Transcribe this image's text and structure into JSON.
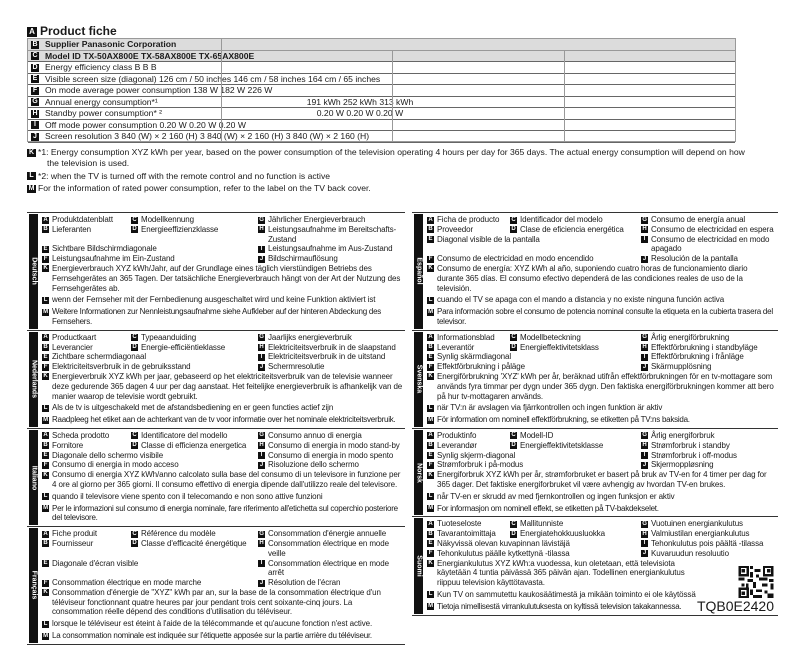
{
  "fiche": {
    "letter": "A",
    "title": "Product fiche",
    "rows": [
      {
        "letter": "B",
        "text": "Supplier Panasonic Corporation",
        "value": ""
      },
      {
        "letter": "C",
        "text": "Model ID TX-50AX800E TX-58AX800E TX-65AX800E",
        "value": ""
      },
      {
        "letter": "D",
        "text": "Energy efficiency class B B B",
        "value": ""
      },
      {
        "letter": "E",
        "text": "Visible screen size (diagonal) 126 cm / 50 inches 146 cm / 58 inches 164 cm / 65 inches",
        "value": ""
      },
      {
        "letter": "F",
        "text": "On mode average power consumption 138 W 182 W 226 W",
        "value": ""
      },
      {
        "letter": "G",
        "text": "Annual energy consumption*¹",
        "value": "191 kWh 252 kWh 313 kWh"
      },
      {
        "letter": "H",
        "text": "Standby power consumption* ²",
        "value": "0.20 W 0.20 W 0.20 W"
      },
      {
        "letter": "I",
        "text": "Off mode power consumption 0.20 W 0.20 W 0.20 W",
        "value": ""
      },
      {
        "letter": "J",
        "text": "Screen resolution 3 840 (W) × 2 160 (H) 3 840 (W) × 2 160 (H) 3 840 (W) × 2 160 (H)",
        "value": ""
      }
    ],
    "notes": [
      {
        "letter": "K",
        "text": "*1: Energy consumption XYZ kWh per year, based on the power consumption of the television operating 4 hours per day for 365 days. The actual energy consumption will depend on how",
        "text2": "the television is used."
      },
      {
        "letter": "L",
        "text": "*2: when the TV is turned off with the remote control and no function is active"
      },
      {
        "letter": "M",
        "text": "For the information of rated power consumption, refer to the label on the TV back cover."
      }
    ]
  },
  "languages": {
    "left": [
      {
        "name": "Deutsch",
        "A": "Produktdatenblatt",
        "B": "Lieferanten",
        "C": "Modellkennung",
        "D": "Energieeffizienzklasse",
        "E": "Sichtbare Bildschirmdiagonale",
        "F": "Leistungsaufnahme im Ein-Zustand",
        "G": "Jährlicher Energieverbrauch",
        "H": "Leistungsaufnahme im Bereitschafts-Zustand",
        "I": "Leistungsaufnahme im Aus-Zustand",
        "J": "Bildschirmauflösung",
        "K": "Energieverbrauch XYZ kWh/Jahr, auf der Grundlage eines täglich vierstündigen Betriebs des Fernsehgerätes an 365 Tagen. Der tatsächliche Energieverbrauch hängt von der Art der Nutzung des Fernsehgerätes ab.",
        "L": "wenn der Fernseher mit der Fernbedienung ausgeschaltet wird und keine Funktion aktiviert ist",
        "M": "Weitere Informationen zur Nennleistungsaufnahme siehe Aufkleber auf der hinteren Abdeckung des Fernsehers."
      },
      {
        "name": "Nederlands",
        "A": "Productkaart",
        "B": "Leverancier",
        "C": "Typeaanduiding",
        "D": "Energie-efficiëntieklasse",
        "E": "Zichtbare schermdiagonaal",
        "F": "Elektriciteitsverbruik in de gebruiksstand",
        "G": "Jaarlijks energieverbruik",
        "H": "Elektriciteitsverbruik in de slaapstand",
        "I": "Elektriciteitsverbruik in de uitstand",
        "J": "Schermresolutie",
        "K": "Energieverbruik XYZ kWh per jaar, gebaseerd op het elektriciteitsverbruik van de televisie wanneer deze gedurende 365 dagen 4 uur per dag aanstaat. Het feitelijke energieverbruik is afhankelijk van de manier waarop de televisie wordt gebruikt.",
        "L": "Als de tv is uitgeschakeld met de afstandsbediening en er geen functies actief zijn",
        "M": "Raadpleeg het etiket aan de achterkant van de tv voor informatie over het nominale elektriciteitsverbruik."
      },
      {
        "name": "Italiano",
        "A": "Scheda prodotto",
        "B": "Fornitore",
        "C": "Identificatore del modello",
        "D": "Classe di efficienza energetica",
        "E": "Diagonale dello schermo visibile",
        "F": "Consumo di energia in modo acceso",
        "G": "Consumo annuo di energia",
        "H": "Consumo di energia in modo stand-by",
        "I": "Consumo di energia in modo spento",
        "J": "Risoluzione dello schermo",
        "K": "Consumo di energia XYZ kWh/anno calcolato sulla base del consumo di un televisore in funzione per 4 ore al giorno per 365 giorni. Il consumo effettivo di energia dipende dall'utilizzo reale del televisore.",
        "L": "quando il televisore viene spento con il telecomando e non sono attive funzioni",
        "M": "Per le informazioni sul consumo di energia nominale, fare riferimento all'etichetta sul coperchio posteriore del televisore."
      },
      {
        "name": "Français",
        "A": "Fiche produit",
        "B": "Fournisseur",
        "C": "Référence du modèle",
        "D": "Classe d'efficacité énergétique",
        "E": "Diagonale d'écran visible",
        "F": "Consommation électrique en mode marche",
        "G": "Consommation d'énergie annuelle",
        "H": "Consommation électrique en mode veille",
        "I": "Consommation électrique en mode arrêt",
        "J": "Résolution de l'écran",
        "K": "Consommation d'énergie de \"XYZ\" kWh par an, sur la base de la consommation électrique d'un téléviseur fonctionnant quatre heures par jour pendant trois cent soixante-cinq jours. La consommation réelle dépend des conditions d'utilisation du téléviseur.",
        "L": "lorsque le téléviseur est éteint à l'aide de la télécommande et qu'aucune fonction n'est active.",
        "M": "La consommation nominale est indiquée sur l'étiquette apposée sur la partie arrière du téléviseur."
      }
    ],
    "right": [
      {
        "name": "Español",
        "A": "Ficha de producto",
        "B": "Proveedor",
        "C": "Identificador del modelo",
        "D": "Clase de eficiencia energética",
        "E": "Diagonal visible de la pantalla",
        "F": "Consumo de electricidad en modo encendido",
        "G": "Consumo de energía anual",
        "H": "Consumo de electricidad en espera",
        "I": "Consumo de electricidad en modo apagado",
        "J": "Resolución de la pantalla",
        "K": "Consumo de energía: XYZ kWh al año, suponiendo cuatro horas de funcionamiento diario durante 365 días. El consumo efectivo dependerá de las condiciones reales de uso de la televisión.",
        "L": "cuando el TV se apaga con el mando a distancia y no existe ninguna función activa",
        "M": "Para información sobre el consumo de potencia nominal consulte la etiqueta en la cubierta trasera del televisor."
      },
      {
        "name": "Svenska",
        "A": "Informationsblad",
        "B": "Leverantör",
        "C": "Modellbeteckning",
        "D": "Energieffektivitetsklass",
        "E": "Synlig skärmdiagonal",
        "F": "Effektförbrukning i påläge",
        "G": "Årlig energiförbrukning",
        "H": "Effektförbrukning i standbyläge",
        "I": "Effektförbrukning i frånläge",
        "J": "Skärmupplösning",
        "K": "Energiförbrukning 'XYZ' kWh per år, beräknad utifrån effektförbrukningen för en tv-mottagare som används fyra timmar per dygn under 365 dygn. Den faktiska energiförbrukningen kommer att bero på hur tv-mottagaren används.",
        "L": "när TV:n är avslagen via fjärrkontrollen och ingen funktion är aktiv",
        "M": "För information om nominell effektförbrukning, se etiketten på TV:ns baksida."
      },
      {
        "name": "Norsk",
        "A": "Produktinfo",
        "B": "Leverandør",
        "C": "Modell-ID",
        "D": "Energieffektivitetsklasse",
        "E": "Synlig skjerm-diagonal",
        "F": "Strømforbruk i på-modus",
        "G": "Årlig energiforbruk",
        "H": "Strømforbruk i standby",
        "I": "Strømforbruk i off-modus",
        "J": "Skjermoppløsning",
        "K": "Energiforbruk XYZ kWh per år, strømforbruket er basert på bruk av TV-en for 4 timer per dag for 365 dager. Det faktiske energiforbruket vil være avhengig av hvordan TV-en brukes.",
        "L": "når TV-en er skrudd av med fjernkontrollen og ingen funksjon er aktiv",
        "M": "For informasjon om nominell effekt, se etiketten på TV-bakdekselet."
      },
      {
        "name": "Suomi",
        "A": "Tuoteseloste",
        "B": "Tavarantoimittaja",
        "C": "Mallitunniste",
        "D": "Energiatehokkuusluokka",
        "E": "Näkyvissä olevan kuvapinnan lävistäjä",
        "F": "Tehonkulutus päälle kytkettynä -tilassa",
        "G": "Vuotuinen energiankulutus",
        "H": "Valmiustilan energiankulutus",
        "I": "Tehonkulutus pois päältä -tilassa",
        "J": "Kuvaruudun resoluutio",
        "K": "Energiankulutus XYZ kWh:a vuodessa, kun oletetaan, että televisiota käytetään 4 tuntia päivässä 365 päivän ajan. Todellinen energiankulutus riippuu television käyttötavasta.",
        "L": "Kun TV on sammutettu kaukosäätimestä ja mikään toiminto ei ole käytössä",
        "M": "Tietoja nimellisestä virrankulutuksesta on kyltissä television takakannessa."
      }
    ]
  },
  "doc_code": "TQB0E2420",
  "qr_icon": "qr-code-icon"
}
